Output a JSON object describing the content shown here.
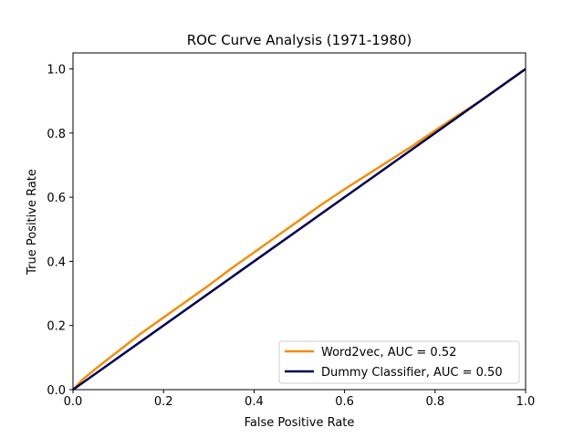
{
  "chart_data": {
    "type": "line",
    "title": "ROC Curve Analysis (1971-1980)",
    "xlabel": "False Positive Rate",
    "ylabel": "True Positive Rate",
    "xlim": [
      0,
      1
    ],
    "ylim": [
      0,
      1.05
    ],
    "xticks": [
      0.0,
      0.2,
      0.4,
      0.6,
      0.8,
      1.0
    ],
    "yticks": [
      0.0,
      0.2,
      0.4,
      0.6,
      0.8,
      1.0
    ],
    "xtick_labels": [
      "0.0",
      "0.2",
      "0.4",
      "0.6",
      "0.8",
      "1.0"
    ],
    "ytick_labels": [
      "0.0",
      "0.2",
      "0.4",
      "0.6",
      "0.8",
      "1.0"
    ],
    "grid": false,
    "legend_position": "lower-right",
    "series": [
      {
        "name": "Word2vec, AUC = 0.52",
        "color": "#f28e0e",
        "style": "solid",
        "x": [
          0.0,
          0.02,
          0.05,
          0.1,
          0.15,
          0.2,
          0.25,
          0.3,
          0.35,
          0.4,
          0.45,
          0.5,
          0.55,
          0.6,
          0.65,
          0.7,
          0.75,
          0.8,
          0.85,
          0.9,
          0.95,
          1.0
        ],
        "y": [
          0.0,
          0.03,
          0.065,
          0.12,
          0.175,
          0.225,
          0.275,
          0.325,
          0.378,
          0.428,
          0.478,
          0.528,
          0.578,
          0.625,
          0.67,
          0.715,
          0.76,
          0.808,
          0.855,
          0.9,
          0.95,
          1.0
        ]
      },
      {
        "name": "Dummy Classifier, AUC = 0.50",
        "color": "#000050",
        "style": "solid",
        "x": [
          0.0,
          1.0
        ],
        "y": [
          0.0,
          1.0
        ]
      }
    ],
    "reference_line": {
      "color": "#000000",
      "style": "dashed",
      "x": [
        0.0,
        1.0
      ],
      "y": [
        0.0,
        1.0
      ]
    }
  }
}
